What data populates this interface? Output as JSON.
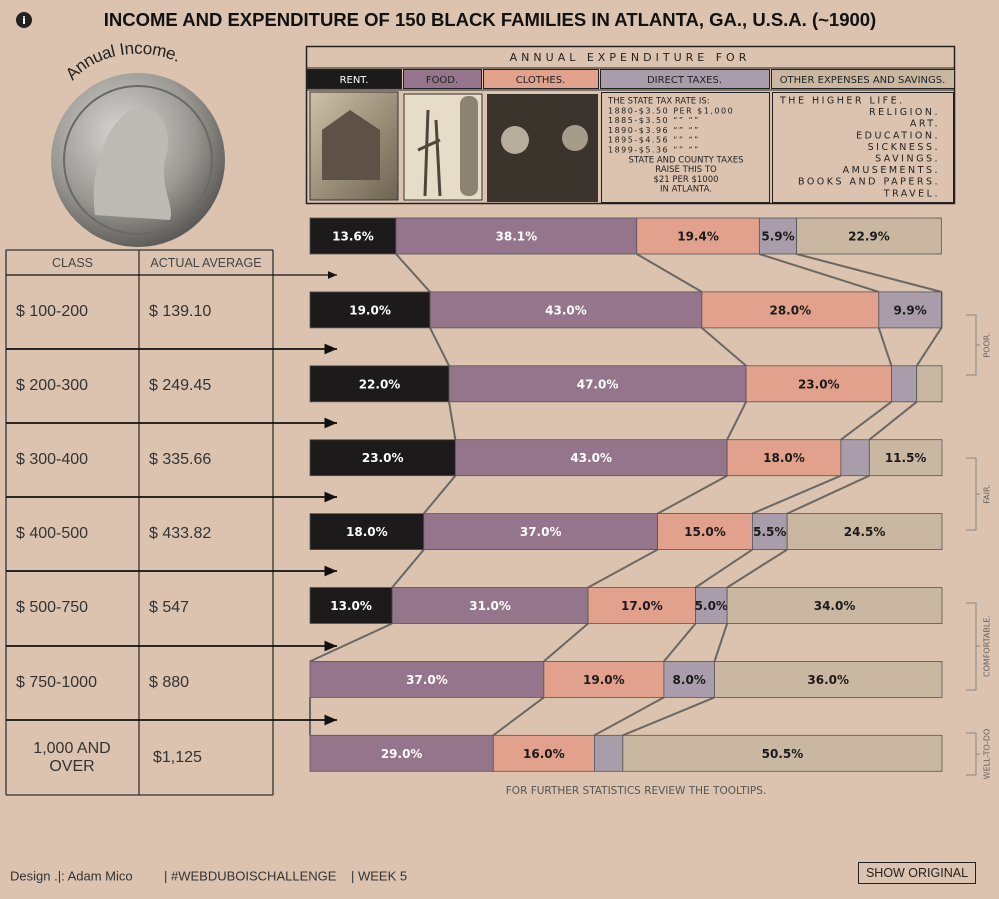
{
  "chart_data": {
    "type": "stacked-bar",
    "title": "INCOME AND EXPENDITURE OF 150 BLACK FAMILIES IN ATLANTA, GA., U.S.A. (~1900)",
    "categories": [
      null,
      "$ 100-200",
      "$ 200-300",
      "$ 300-400",
      "$ 400-500",
      "$ 500-750",
      "$ 750-1000",
      "1,000 AND OVER"
    ],
    "xlim": [
      0,
      100
    ],
    "series": [
      {
        "name": "RENT.",
        "color": "#1c1a1a",
        "text_color": "#ffffff",
        "values": [
          13.6,
          19,
          22,
          23,
          18,
          13,
          0,
          0
        ],
        "value_labels": [
          "13.6%",
          "19.0%",
          "22.0%",
          "23.0%",
          "18.0%",
          "13.0%",
          null,
          null
        ]
      },
      {
        "name": "FOOD.",
        "color": "#95758b",
        "text_color": "#ffffff",
        "values": [
          38.1,
          43,
          47,
          43,
          37,
          31,
          37,
          29
        ],
        "value_labels": [
          "38.1%",
          "43.0%",
          "47.0%",
          "43.0%",
          "37.0%",
          "31.0%",
          "37.0%",
          "29.0%"
        ]
      },
      {
        "name": "CLOTHES.",
        "color": "#e1a18d",
        "text_color": "#1c1a1a",
        "values": [
          19.4,
          28,
          23,
          18,
          15,
          17,
          19,
          16
        ],
        "value_labels": [
          "19.4%",
          "28.0%",
          "23.0%",
          "18.0%",
          "15.0%",
          "17.0%",
          "19.0%",
          "16.0%"
        ]
      },
      {
        "name": "DIRECT TAXES.",
        "color": "#a99dab",
        "text_color": "#1c1a1a",
        "values": [
          5.9,
          9.9,
          4,
          4.5,
          5.5,
          5,
          8,
          4.5
        ],
        "value_labels": [
          "5.9%",
          "9.9%",
          null,
          null,
          "5.5%",
          "5.0%",
          "8.0%",
          null
        ]
      },
      {
        "name": "OTHER EXPENSES AND SAVINGS.",
        "color": "#cab7a2",
        "text_color": "#1c1a1a",
        "values": [
          22.9,
          0.1,
          4,
          11.5,
          24.5,
          34,
          36,
          50.5
        ],
        "value_labels": [
          "22.9%",
          null,
          null,
          "11.5%",
          "24.5%",
          "34.0%",
          "36.0%",
          "50.5%"
        ]
      }
    ],
    "groups": [
      "POOR.",
      "FAIR.",
      "COMFORTABLE.",
      "WELL-TO-DO"
    ],
    "note": "FOR FURTHER STATISTICS REVIEW THE TOOLTIPS."
  },
  "coin_label": "Annual Income.",
  "table": {
    "headers": [
      "CLASS",
      "ACTUAL AVERAGE"
    ],
    "averages": [
      "$ 139.10",
      "$ 249.45",
      "$ 335.66",
      "$ 433.82",
      "$ 547",
      "$ 880",
      "$1,125"
    ]
  },
  "header": {
    "expenditure_title": "ANNUAL EXPENDITURE FOR",
    "tax_note": [
      "THE STATE TAX RATE IS:",
      "1880-$3.50 PER $1,000",
      "1885-$3.50 “” “”",
      "1890-$3.96 “” “”",
      "1895-$4.56 “” “”",
      "1899-$5.36 “” “”",
      "STATE AND COUNTY TAXES",
      "RAISE THIS TO",
      "$21 PER $1000",
      "IN ATLANTA."
    ],
    "other_items": [
      "THE HIGHER LIFE.",
      "RELIGION.",
      "ART.",
      "EDUCATION.",
      "SICKNESS.",
      "SAVINGS.",
      "AMUSEMENTS.",
      "BOOKS AND PAPERS.",
      "TRAVEL."
    ]
  },
  "footer": {
    "credits": [
      "Design .|: Adam Mico",
      "| #WEBDUBOISCHALLENGE",
      "| WEEK 5"
    ],
    "button": "SHOW ORIGINAL"
  }
}
